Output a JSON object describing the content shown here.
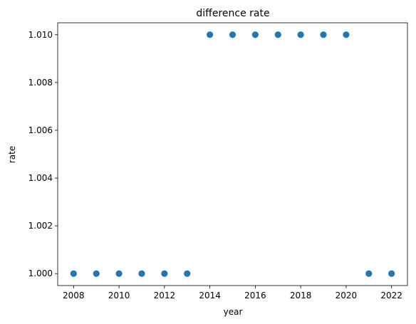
{
  "chart_data": {
    "type": "scatter",
    "title": "difference rate",
    "xlabel": "year",
    "ylabel": "rate",
    "xlim": [
      2007.3,
      2022.7
    ],
    "ylim": [
      0.9995,
      1.0105
    ],
    "xticks": [
      2008,
      2010,
      2012,
      2014,
      2016,
      2018,
      2020,
      2022
    ],
    "xtick_labels": [
      "2008",
      "2010",
      "2012",
      "2014",
      "2016",
      "2018",
      "2020",
      "2022"
    ],
    "yticks": [
      1.0,
      1.002,
      1.004,
      1.006,
      1.008,
      1.01
    ],
    "ytick_labels": [
      "1.000",
      "1.002",
      "1.004",
      "1.006",
      "1.008",
      "1.010"
    ],
    "grid": false,
    "series": [
      {
        "color": "#1f77b4",
        "x": [
          2008,
          2009,
          2010,
          2011,
          2012,
          2013,
          2014,
          2015,
          2016,
          2017,
          2018,
          2019,
          2020,
          2021,
          2022
        ],
        "y": [
          1.0,
          1.0,
          1.0,
          1.0,
          1.0,
          1.0,
          1.01,
          1.01,
          1.01,
          1.01,
          1.01,
          1.01,
          1.01,
          1.0,
          1.0
        ]
      }
    ]
  }
}
